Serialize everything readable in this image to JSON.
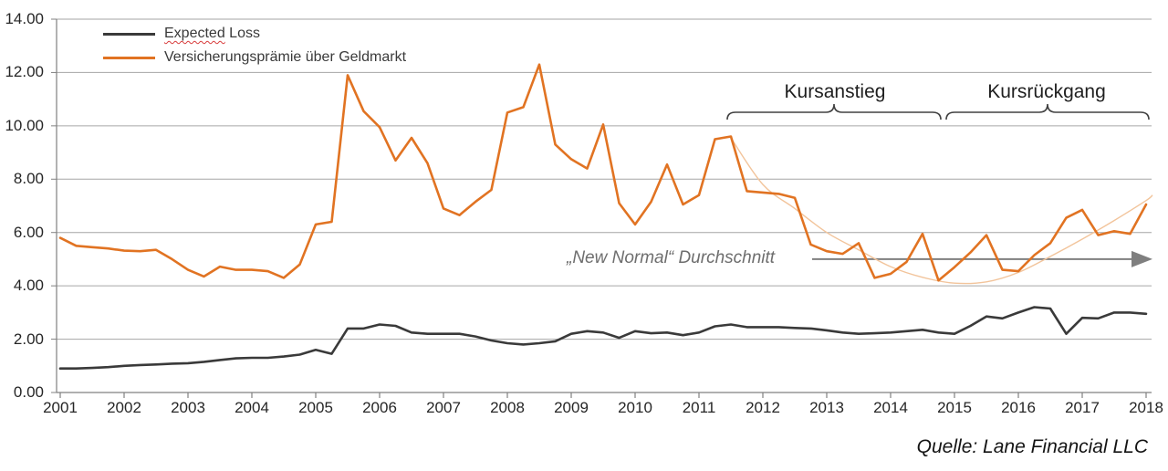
{
  "annotations": {
    "kursanstieg": "Kursanstieg",
    "kursrueckgang": "Kursrückgang",
    "source": "Quelle: Lane Financial LLC"
  },
  "legend": {
    "spellcheck_underline_word": "Expected"
  },
  "colors": {
    "grid": "#a6a6a6",
    "axis": "#808080",
    "tick": "#808080",
    "brace": "#404040",
    "average_arrow": "#808080"
  },
  "chart_data": {
    "type": "line",
    "title": "",
    "x_unit": "quarterly",
    "x_range": [
      "2001 Q1",
      "2018 Q1"
    ],
    "ylim": [
      0,
      14
    ],
    "grid": "horizontal",
    "legend_position": "top-left",
    "y_ticks": [
      "0.00",
      "2.00",
      "4.00",
      "6.00",
      "8.00",
      "10.00",
      "12.00",
      "14.00"
    ],
    "categories_years": [
      "2001",
      "2002",
      "2003",
      "2004",
      "2005",
      "2006",
      "2007",
      "2008",
      "2009",
      "2010",
      "2011",
      "2012",
      "2013",
      "2014",
      "2015",
      "2016",
      "2017",
      "2018"
    ],
    "series": [
      {
        "name": "Expected Loss",
        "color": "#3a3a3a",
        "values": [
          0.9,
          0.9,
          0.92,
          0.95,
          1.0,
          1.03,
          1.05,
          1.08,
          1.1,
          1.15,
          1.22,
          1.28,
          1.3,
          1.3,
          1.35,
          1.42,
          1.6,
          1.45,
          2.4,
          2.4,
          2.55,
          2.5,
          2.25,
          2.2,
          2.2,
          2.2,
          2.1,
          1.95,
          1.85,
          1.8,
          1.85,
          1.92,
          2.2,
          2.3,
          2.25,
          2.05,
          2.3,
          2.22,
          2.25,
          2.15,
          2.25,
          2.48,
          2.55,
          2.45,
          2.45,
          2.45,
          2.42,
          2.4,
          2.33,
          2.25,
          2.2,
          2.22,
          2.25,
          2.3,
          2.35,
          2.25,
          2.2,
          2.5,
          2.85,
          2.78,
          3.0,
          3.2,
          3.15,
          2.2,
          2.8,
          2.78,
          3.0,
          3.0,
          2.95
        ]
      },
      {
        "name": "Versicherungsprämie über Geldmarkt",
        "color": "#e17322",
        "values": [
          5.8,
          5.5,
          5.45,
          5.4,
          5.32,
          5.3,
          5.35,
          5.0,
          4.6,
          4.35,
          4.72,
          4.6,
          4.6,
          4.55,
          4.3,
          4.8,
          6.3,
          6.4,
          11.9,
          10.55,
          9.95,
          8.7,
          9.55,
          8.6,
          6.9,
          6.65,
          7.15,
          7.6,
          10.5,
          10.7,
          12.3,
          9.3,
          8.75,
          8.4,
          10.05,
          7.1,
          6.3,
          7.15,
          8.55,
          7.05,
          7.4,
          9.5,
          9.6,
          7.55,
          7.5,
          7.45,
          7.3,
          5.55,
          5.3,
          5.2,
          5.6,
          4.3,
          4.45,
          4.9,
          5.95,
          4.2,
          4.7,
          5.25,
          5.9,
          4.6,
          4.55,
          5.15,
          5.6,
          6.55,
          6.85,
          5.9,
          6.05,
          5.95,
          7.05
        ]
      }
    ],
    "trend": {
      "name": "Polynomischer Trend ab 2011",
      "color": "#f2c49b",
      "points_quarter_value": [
        [
          42,
          9.55
        ],
        [
          44,
          7.8
        ],
        [
          46,
          6.9
        ],
        [
          48,
          6.0
        ],
        [
          50,
          5.35
        ],
        [
          52,
          4.72
        ],
        [
          54,
          4.32
        ],
        [
          56,
          4.1
        ],
        [
          58,
          4.15
        ],
        [
          60,
          4.5
        ],
        [
          62,
          5.1
        ],
        [
          64,
          5.75
        ],
        [
          66,
          6.45
        ],
        [
          68,
          7.2
        ],
        [
          68.4,
          7.4
        ]
      ]
    },
    "average_line": {
      "label": "„New Normal“ Durchschnitt",
      "value": 5.0,
      "color": "#7f7f7f"
    }
  }
}
